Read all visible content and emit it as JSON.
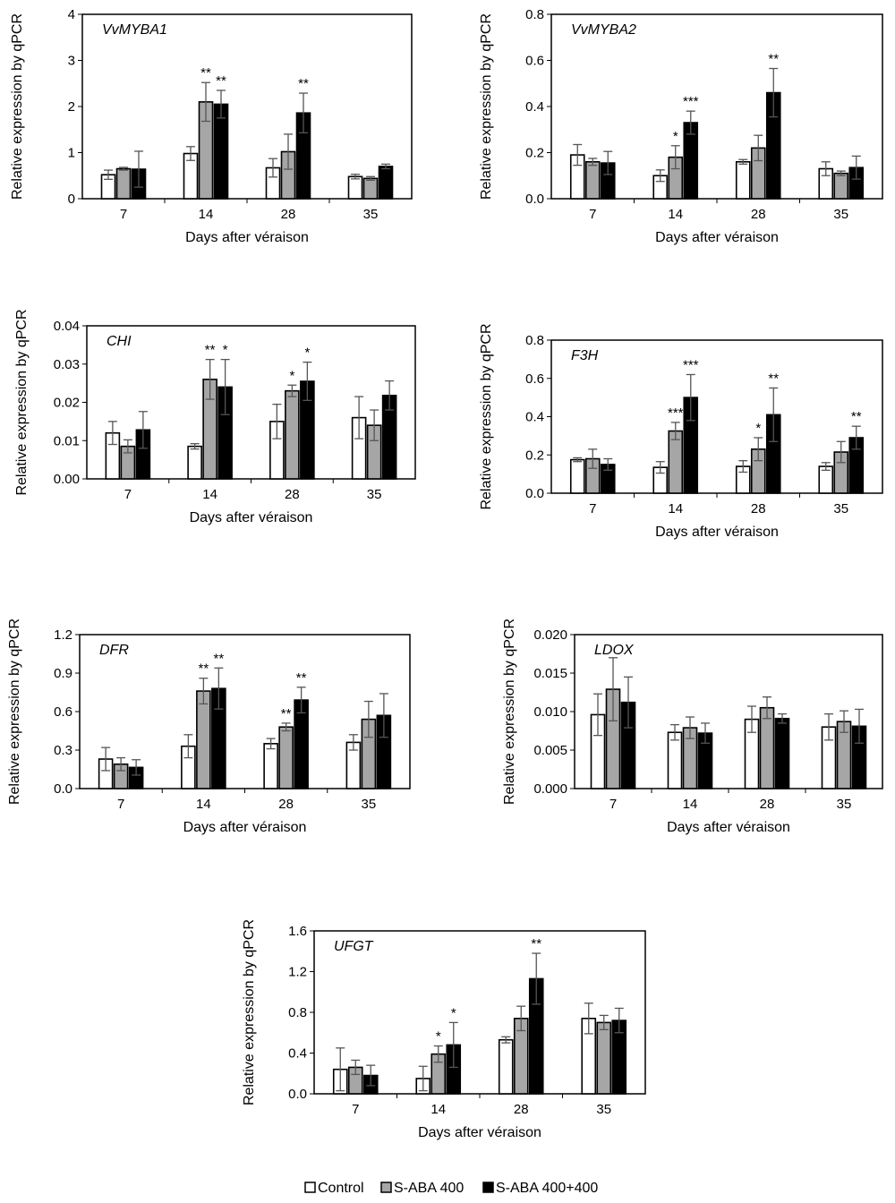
{
  "series_names": [
    "Control",
    "S-ABA 400",
    "S-ABA 400+400"
  ],
  "series_colors": [
    "#ffffff",
    "#a6a6a6",
    "#000000"
  ],
  "chart_data": [
    {
      "type": "bar",
      "title": "VvMYBA1",
      "xlabel": "Days after véraison",
      "ylabel": "Relative expression by qPCR",
      "categories": [
        "7",
        "14",
        "28",
        "35"
      ],
      "ylim": [
        0,
        4
      ],
      "yticks": [
        "0",
        "1",
        "2",
        "3",
        "4"
      ],
      "series": [
        {
          "name": "Control",
          "values": [
            0.52,
            0.98,
            0.67,
            0.48
          ],
          "errors": [
            0.1,
            0.15,
            0.2,
            0.05
          ],
          "sig": [
            "",
            "",
            "",
            ""
          ]
        },
        {
          "name": "S-ABA 400",
          "values": [
            0.65,
            2.1,
            1.02,
            0.44
          ],
          "errors": [
            0.03,
            0.42,
            0.38,
            0.04
          ],
          "sig": [
            "",
            "**",
            "",
            ""
          ]
        },
        {
          "name": "S-ABA 400+400",
          "values": [
            0.64,
            2.05,
            1.86,
            0.7
          ],
          "errors": [
            0.39,
            0.3,
            0.43,
            0.05
          ],
          "sig": [
            "",
            "**",
            "**",
            ""
          ]
        }
      ]
    },
    {
      "type": "bar",
      "title": "VvMYBA2",
      "xlabel": "Days after véraison",
      "ylabel": "Relative expression by qPCR",
      "categories": [
        "7",
        "14",
        "28",
        "35"
      ],
      "ylim": [
        0,
        0.8
      ],
      "yticks": [
        "0.0",
        "0.2",
        "0.4",
        "0.6",
        "0.8"
      ],
      "series": [
        {
          "name": "Control",
          "values": [
            0.19,
            0.1,
            0.16,
            0.13
          ],
          "errors": [
            0.045,
            0.025,
            0.01,
            0.03
          ],
          "sig": [
            "",
            "",
            "",
            ""
          ]
        },
        {
          "name": "S-ABA 400",
          "values": [
            0.16,
            0.18,
            0.22,
            0.11
          ],
          "errors": [
            0.015,
            0.05,
            0.055,
            0.01
          ],
          "sig": [
            "",
            "*",
            "",
            ""
          ]
        },
        {
          "name": "S-ABA 400+400",
          "values": [
            0.155,
            0.33,
            0.46,
            0.135
          ],
          "errors": [
            0.05,
            0.05,
            0.105,
            0.05
          ],
          "sig": [
            "",
            "***",
            "**",
            ""
          ]
        }
      ]
    },
    {
      "type": "bar",
      "title": "CHI",
      "xlabel": "Days after véraison",
      "ylabel": "Relative expression by qPCR",
      "categories": [
        "7",
        "14",
        "28",
        "35"
      ],
      "ylim": [
        0,
        0.04
      ],
      "yticks": [
        "0.00",
        "0.01",
        "0.02",
        "0.03",
        "0.04"
      ],
      "series": [
        {
          "name": "Control",
          "values": [
            0.012,
            0.0085,
            0.015,
            0.016
          ],
          "errors": [
            0.003,
            0.0007,
            0.0045,
            0.0055
          ],
          "sig": [
            "",
            "",
            "",
            ""
          ]
        },
        {
          "name": "S-ABA 400",
          "values": [
            0.0085,
            0.026,
            0.023,
            0.014
          ],
          "errors": [
            0.0017,
            0.0052,
            0.0015,
            0.004
          ],
          "sig": [
            "",
            "**",
            "*",
            ""
          ]
        },
        {
          "name": "S-ABA 400+400",
          "values": [
            0.0128,
            0.024,
            0.0255,
            0.0218
          ],
          "errors": [
            0.0048,
            0.0072,
            0.005,
            0.0038
          ],
          "sig": [
            "",
            "*",
            "*",
            ""
          ]
        }
      ]
    },
    {
      "type": "bar",
      "title": "F3H",
      "xlabel": "Days after véraison",
      "ylabel": "Relative expression by qPCR",
      "categories": [
        "7",
        "14",
        "28",
        "35"
      ],
      "ylim": [
        0,
        0.8
      ],
      "yticks": [
        "0.0",
        "0.2",
        "0.4",
        "0.6",
        "0.8"
      ],
      "series": [
        {
          "name": "Control",
          "values": [
            0.175,
            0.135,
            0.14,
            0.14
          ],
          "errors": [
            0.01,
            0.03,
            0.03,
            0.02
          ],
          "sig": [
            "",
            "",
            "",
            ""
          ]
        },
        {
          "name": "S-ABA 400",
          "values": [
            0.18,
            0.325,
            0.23,
            0.215
          ],
          "errors": [
            0.05,
            0.045,
            0.06,
            0.055
          ],
          "sig": [
            "",
            "***",
            "*",
            ""
          ]
        },
        {
          "name": "S-ABA 400+400",
          "values": [
            0.15,
            0.5,
            0.41,
            0.29
          ],
          "errors": [
            0.03,
            0.12,
            0.14,
            0.06
          ],
          "sig": [
            "",
            "***",
            "**",
            "**"
          ]
        }
      ]
    },
    {
      "type": "bar",
      "title": "DFR",
      "xlabel": "Days after véraison",
      "ylabel": "Relative expression by qPCR",
      "categories": [
        "7",
        "14",
        "28",
        "35"
      ],
      "ylim": [
        0,
        1.2
      ],
      "yticks": [
        "0.0",
        "0.3",
        "0.6",
        "0.9",
        "1.2"
      ],
      "series": [
        {
          "name": "Control",
          "values": [
            0.23,
            0.33,
            0.35,
            0.36
          ],
          "errors": [
            0.09,
            0.09,
            0.04,
            0.06
          ],
          "sig": [
            "",
            "",
            "",
            ""
          ]
        },
        {
          "name": "S-ABA 400",
          "values": [
            0.19,
            0.76,
            0.48,
            0.54
          ],
          "errors": [
            0.05,
            0.1,
            0.03,
            0.14
          ],
          "sig": [
            "",
            "**",
            "**",
            ""
          ]
        },
        {
          "name": "S-ABA 400+400",
          "values": [
            0.165,
            0.78,
            0.69,
            0.57
          ],
          "errors": [
            0.06,
            0.16,
            0.1,
            0.17
          ],
          "sig": [
            "",
            "**",
            "**",
            ""
          ]
        }
      ]
    },
    {
      "type": "bar",
      "title": "LDOX",
      "xlabel": "Days after véraison",
      "ylabel": "Relative expression by qPCR",
      "categories": [
        "7",
        "14",
        "28",
        "35"
      ],
      "ylim": [
        0,
        0.02
      ],
      "yticks": [
        "0.000",
        "0.005",
        "0.010",
        "0.015",
        "0.020"
      ],
      "series": [
        {
          "name": "Control",
          "values": [
            0.0096,
            0.0073,
            0.009,
            0.008
          ],
          "errors": [
            0.0027,
            0.001,
            0.0017,
            0.0017
          ],
          "sig": [
            "",
            "",
            "",
            ""
          ]
        },
        {
          "name": "S-ABA 400",
          "values": [
            0.0129,
            0.0079,
            0.0105,
            0.0087
          ],
          "errors": [
            0.0041,
            0.0014,
            0.0014,
            0.0014
          ],
          "sig": [
            "",
            "",
            "",
            ""
          ]
        },
        {
          "name": "S-ABA 400+400",
          "values": [
            0.0112,
            0.0072,
            0.0091,
            0.0081
          ],
          "errors": [
            0.0033,
            0.0013,
            0.0006,
            0.0022
          ],
          "sig": [
            "",
            "",
            "",
            ""
          ]
        }
      ]
    },
    {
      "type": "bar",
      "title": "UFGT",
      "xlabel": "Days after véraison",
      "ylabel": "Relative expression by qPCR",
      "categories": [
        "7",
        "14",
        "28",
        "35"
      ],
      "ylim": [
        0,
        1.6
      ],
      "yticks": [
        "0.0",
        "0.4",
        "0.8",
        "1.2",
        "1.6"
      ],
      "series": [
        {
          "name": "Control",
          "values": [
            0.24,
            0.15,
            0.53,
            0.74
          ],
          "errors": [
            0.21,
            0.12,
            0.03,
            0.15
          ],
          "sig": [
            "",
            "",
            "",
            ""
          ]
        },
        {
          "name": "S-ABA 400",
          "values": [
            0.26,
            0.39,
            0.74,
            0.7
          ],
          "errors": [
            0.07,
            0.08,
            0.12,
            0.07
          ],
          "sig": [
            "",
            "*",
            "",
            ""
          ]
        },
        {
          "name": "S-ABA 400+400",
          "values": [
            0.18,
            0.48,
            1.13,
            0.72
          ],
          "errors": [
            0.1,
            0.22,
            0.25,
            0.12
          ],
          "sig": [
            "",
            "*",
            "**",
            ""
          ]
        }
      ]
    }
  ]
}
